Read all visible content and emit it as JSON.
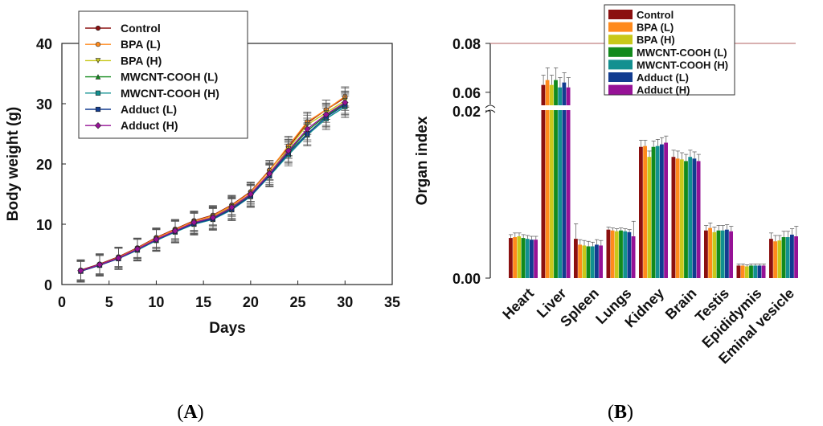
{
  "panel_labels": {
    "a_prefix": "(",
    "a": "A",
    "a_suffix": ")",
    "b_prefix": "(",
    "b": "B",
    "b_suffix": ")"
  },
  "colors": {
    "control": "#8b1010",
    "bpa_l": "#ff8a1c",
    "bpa_h": "#c8c81a",
    "mwcnt_l": "#128a1c",
    "mwcnt_h": "#129090",
    "adduct_l": "#123c90",
    "adduct_h": "#961296",
    "error": "#555555",
    "break_line": "#b06060"
  },
  "chart_data": [
    {
      "type": "line",
      "panel": "A",
      "xlabel": "Days",
      "ylabel": "Body weight (g)",
      "xlim": [
        0,
        35
      ],
      "ylim": [
        0,
        40
      ],
      "xticks": [
        "0",
        "5",
        "10",
        "15",
        "20",
        "25",
        "30",
        "35"
      ],
      "yticks": [
        "0",
        "10",
        "20",
        "30",
        "40"
      ],
      "x": [
        2,
        4,
        6,
        8,
        10,
        12,
        14,
        16,
        18,
        20,
        22,
        24,
        26,
        28,
        30
      ],
      "series": [
        {
          "name": "Control",
          "values": [
            2.4,
            3.4,
            4.6,
            6.1,
            7.8,
            9.2,
            10.6,
            11.5,
            13.2,
            15.4,
            19.0,
            22.8,
            26.8,
            29.0,
            31.0
          ],
          "error": 1.6
        },
        {
          "name": "BPA (L)",
          "values": [
            2.3,
            3.3,
            4.5,
            6.0,
            7.7,
            9.1,
            10.5,
            11.4,
            13.1,
            15.3,
            18.9,
            23.0,
            27.0,
            29.0,
            31.2
          ],
          "error": 1.6
        },
        {
          "name": "BPA (H)",
          "values": [
            2.2,
            3.2,
            4.4,
            5.9,
            7.5,
            8.9,
            10.3,
            11.2,
            12.9,
            15.0,
            18.5,
            22.5,
            26.5,
            28.5,
            30.5
          ],
          "error": 1.6
        },
        {
          "name": "MWCNT-COOH (L)",
          "values": [
            2.3,
            3.3,
            4.4,
            5.8,
            7.4,
            8.8,
            10.2,
            11.0,
            12.6,
            14.8,
            18.2,
            22.0,
            25.5,
            28.0,
            30.0
          ],
          "error": 1.8
        },
        {
          "name": "MWCNT-COOH (H)",
          "values": [
            2.2,
            3.2,
            4.3,
            5.7,
            7.3,
            8.7,
            10.0,
            10.8,
            12.4,
            14.6,
            18.0,
            21.5,
            24.8,
            27.5,
            29.5
          ],
          "error": 1.8
        },
        {
          "name": "Adduct (L)",
          "values": [
            2.2,
            3.2,
            4.3,
            5.8,
            7.4,
            8.8,
            10.1,
            10.9,
            12.5,
            14.7,
            18.1,
            21.8,
            25.0,
            27.8,
            29.8
          ],
          "error": 1.8
        },
        {
          "name": "Adduct (H)",
          "values": [
            2.3,
            3.3,
            4.4,
            5.9,
            7.5,
            8.9,
            10.3,
            11.1,
            12.8,
            15.0,
            18.4,
            22.2,
            25.8,
            28.2,
            30.2
          ],
          "error": 1.8
        }
      ],
      "legend_position": "top-left"
    },
    {
      "type": "bar",
      "panel": "B",
      "ylabel": "Organ index",
      "broken_axis": true,
      "lower_ylim": [
        0,
        0.02
      ],
      "upper_ylim": [
        0.055,
        0.08
      ],
      "yticks_lower": [
        "0.00",
        "0.02"
      ],
      "yticks_upper": [
        "0.06",
        "0.08"
      ],
      "categories": [
        "Heart",
        "Liver",
        "Spleen",
        "Lungs",
        "Kidney",
        "Brain",
        "Testis",
        "Epididymis",
        "Eminal vesicle"
      ],
      "series": [
        {
          "name": "Control",
          "values": [
            0.0048,
            0.063,
            0.0047,
            0.0058,
            0.0157,
            0.0145,
            0.0057,
            0.0015,
            0.0047
          ],
          "errors": [
            0.0004,
            0.004,
            0.0018,
            0.0003,
            0.0008,
            0.0008,
            0.0006,
            0.0002,
            0.0007
          ]
        },
        {
          "name": "BPA (L)",
          "values": [
            0.0049,
            0.065,
            0.004,
            0.0057,
            0.0158,
            0.0143,
            0.006,
            0.0015,
            0.0044
          ],
          "errors": [
            0.0005,
            0.005,
            0.0006,
            0.0003,
            0.0007,
            0.0009,
            0.0006,
            0.0002,
            0.0007
          ]
        },
        {
          "name": "BPA (H)",
          "values": [
            0.005,
            0.063,
            0.0039,
            0.0056,
            0.0145,
            0.0142,
            0.0055,
            0.0014,
            0.0045
          ],
          "errors": [
            0.0004,
            0.004,
            0.0006,
            0.0003,
            0.0007,
            0.0008,
            0.0006,
            0.0002,
            0.0006
          ]
        },
        {
          "name": "MWCNT-COOH (L)",
          "values": [
            0.0048,
            0.065,
            0.0038,
            0.0057,
            0.0157,
            0.014,
            0.0057,
            0.0015,
            0.0049
          ],
          "errors": [
            0.0004,
            0.005,
            0.0006,
            0.0003,
            0.0007,
            0.0008,
            0.0006,
            0.0002,
            0.0007
          ]
        },
        {
          "name": "MWCNT-COOH (H)",
          "values": [
            0.0047,
            0.062,
            0.0038,
            0.0056,
            0.0158,
            0.0145,
            0.0057,
            0.0015,
            0.0049
          ],
          "errors": [
            0.0004,
            0.004,
            0.0005,
            0.0003,
            0.0008,
            0.0008,
            0.0006,
            0.0002,
            0.0007
          ]
        },
        {
          "name": "Adduct (L)",
          "values": [
            0.0046,
            0.064,
            0.004,
            0.0055,
            0.016,
            0.0143,
            0.0058,
            0.0015,
            0.0052
          ],
          "errors": [
            0.0004,
            0.004,
            0.0006,
            0.0003,
            0.0008,
            0.0008,
            0.0006,
            0.0002,
            0.0007
          ]
        },
        {
          "name": "Adduct (H)",
          "values": [
            0.0046,
            0.062,
            0.0039,
            0.005,
            0.0162,
            0.014,
            0.0056,
            0.0015,
            0.005
          ],
          "errors": [
            0.0004,
            0.004,
            0.0006,
            0.0018,
            0.0008,
            0.0008,
            0.0006,
            0.0002,
            0.0012
          ]
        }
      ],
      "legend_position": "top-center"
    }
  ]
}
